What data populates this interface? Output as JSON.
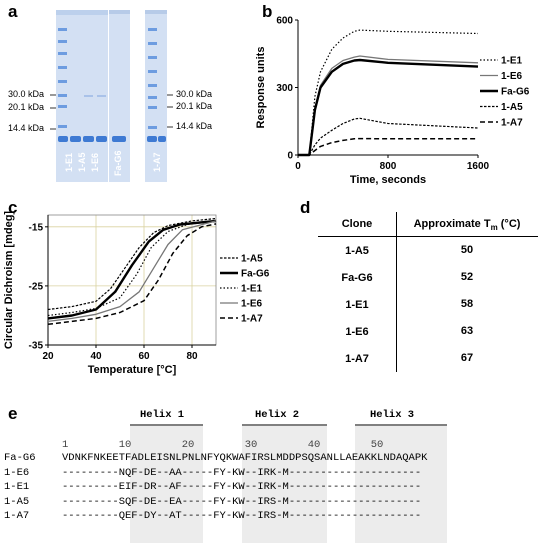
{
  "panels": {
    "a": "a",
    "b": "b",
    "c": "c",
    "d": "d",
    "e": "e"
  },
  "gel": {
    "markers_left": [
      "30.0 kDa",
      "20.1 kDa",
      "14.4 kDa"
    ],
    "markers_right": [
      "30.0 kDa",
      "20.1 kDa",
      "14.4 kDa"
    ],
    "lanes_left": [
      "1-E1",
      "1-A5",
      "1-E6"
    ],
    "lane_middle": "Fa-G6",
    "lane_right": "1-A7",
    "colors": {
      "gel": "#c9daf2",
      "ladder": "#5b8fd9",
      "band": "#3e7ad3"
    }
  },
  "chart_data": [
    {
      "panel": "b",
      "type": "line",
      "xlabel": "Time, seconds",
      "ylabel": "Response units",
      "xlim": [
        0,
        1600
      ],
      "ylim": [
        0,
        600
      ],
      "xticks": [
        0,
        800,
        1600
      ],
      "yticks": [
        0,
        300,
        600
      ],
      "legend_position": "right",
      "series": [
        {
          "name": "1-E1",
          "style": "dotted",
          "points": [
            [
              0,
              0
            ],
            [
              100,
              0
            ],
            [
              150,
              260
            ],
            [
              200,
              370
            ],
            [
              300,
              470
            ],
            [
              400,
              520
            ],
            [
              500,
              550
            ],
            [
              550,
              555
            ],
            [
              800,
              550
            ],
            [
              1600,
              540
            ]
          ]
        },
        {
          "name": "1-E6",
          "style": "thin",
          "points": [
            [
              0,
              0
            ],
            [
              100,
              0
            ],
            [
              150,
              210
            ],
            [
              200,
              310
            ],
            [
              300,
              385
            ],
            [
              400,
              420
            ],
            [
              500,
              435
            ],
            [
              550,
              440
            ],
            [
              800,
              425
            ],
            [
              1600,
              410
            ]
          ]
        },
        {
          "name": "Fa-G6",
          "style": "bold",
          "points": [
            [
              0,
              0
            ],
            [
              100,
              0
            ],
            [
              150,
              200
            ],
            [
              200,
              300
            ],
            [
              300,
              370
            ],
            [
              400,
              405
            ],
            [
              500,
              420
            ],
            [
              550,
              422
            ],
            [
              800,
              410
            ],
            [
              1600,
              393
            ]
          ]
        },
        {
          "name": "1-A5",
          "style": "short-dash",
          "points": [
            [
              0,
              0
            ],
            [
              100,
              0
            ],
            [
              150,
              45
            ],
            [
              200,
              75
            ],
            [
              300,
              110
            ],
            [
              400,
              140
            ],
            [
              500,
              160
            ],
            [
              550,
              163
            ],
            [
              800,
              140
            ],
            [
              1600,
              120
            ]
          ]
        },
        {
          "name": "1-A7",
          "style": "dashed",
          "points": [
            [
              0,
              0
            ],
            [
              100,
              0
            ],
            [
              150,
              20
            ],
            [
              200,
              38
            ],
            [
              300,
              55
            ],
            [
              400,
              65
            ],
            [
              500,
              72
            ],
            [
              550,
              73
            ],
            [
              800,
              72
            ],
            [
              1600,
              72
            ]
          ]
        }
      ]
    },
    {
      "panel": "c",
      "type": "line",
      "xlabel": "Temperature [°C]",
      "ylabel": "Circular Dichroism [mdeg]",
      "xlim": [
        20,
        90
      ],
      "ylim": [
        -35,
        -13
      ],
      "xticks": [
        20,
        40,
        60,
        80
      ],
      "yticks": [
        -15,
        -25,
        -35
      ],
      "grid": true,
      "legend_position": "right",
      "series": [
        {
          "name": "1-A5",
          "style": "short-dash",
          "points": [
            [
              20,
              -29
            ],
            [
              30,
              -28.5
            ],
            [
              40,
              -27.6
            ],
            [
              46,
              -25.5
            ],
            [
              52,
              -22
            ],
            [
              58,
              -18.5
            ],
            [
              64,
              -16
            ],
            [
              70,
              -14.8
            ],
            [
              80,
              -14
            ],
            [
              90,
              -13.6
            ]
          ]
        },
        {
          "name": "Fa-G6",
          "style": "bold",
          "points": [
            [
              20,
              -30.5
            ],
            [
              30,
              -30
            ],
            [
              40,
              -29
            ],
            [
              48,
              -26
            ],
            [
              55,
              -21.5
            ],
            [
              62,
              -17.5
            ],
            [
              68,
              -15.5
            ],
            [
              75,
              -14.6
            ],
            [
              90,
              -14
            ]
          ]
        },
        {
          "name": "1-E1",
          "style": "dotted",
          "points": [
            [
              20,
              -30
            ],
            [
              30,
              -29.5
            ],
            [
              40,
              -28.8
            ],
            [
              50,
              -27
            ],
            [
              57,
              -23
            ],
            [
              63,
              -18.5
            ],
            [
              70,
              -15.8
            ],
            [
              78,
              -14.6
            ],
            [
              90,
              -14
            ]
          ]
        },
        {
          "name": "1-E6",
          "style": "thin",
          "points": [
            [
              20,
              -31
            ],
            [
              30,
              -30.5
            ],
            [
              40,
              -29.8
            ],
            [
              50,
              -28.5
            ],
            [
              58,
              -26
            ],
            [
              64,
              -22
            ],
            [
              70,
              -18
            ],
            [
              76,
              -15.5
            ],
            [
              90,
              -14
            ]
          ]
        },
        {
          "name": "1-A7",
          "style": "dashed",
          "points": [
            [
              20,
              -31.5
            ],
            [
              30,
              -31
            ],
            [
              40,
              -30.5
            ],
            [
              50,
              -29.5
            ],
            [
              60,
              -27.5
            ],
            [
              66,
              -24
            ],
            [
              72,
              -19.5
            ],
            [
              78,
              -16.5
            ],
            [
              84,
              -15
            ],
            [
              90,
              -14.5
            ]
          ]
        }
      ]
    }
  ],
  "table": {
    "header_clone": "Clone",
    "header_tm_prefix": "Approximate T",
    "header_tm_sub": "m",
    "header_tm_suffix": " (°C)",
    "rows": [
      {
        "clone": "1-A5",
        "tm": "50"
      },
      {
        "clone": "Fa-G6",
        "tm": "52"
      },
      {
        "clone": "1-E1",
        "tm": "58"
      },
      {
        "clone": "1-E6",
        "tm": "63"
      },
      {
        "clone": "1-A7",
        "tm": "67"
      }
    ]
  },
  "alignment": {
    "helices": [
      "Helix 1",
      "Helix 2",
      "Helix 3"
    ],
    "ruler": "1        10        20        30        40        50",
    "rows": [
      {
        "name": "Fa-G6",
        "seq": "VDNKFNKEETFADLEISNLPNLNFYQKWAFIRSLMDDPSQSANLLAEAKKLNDAQAPK"
      },
      {
        "name": "1-E6",
        "seq": "---------NQF-DE--AA-----FY-KW--IRK-M---------------------"
      },
      {
        "name": "1-E1",
        "seq": "---------EIF-DR--AF-----FY-KW--IRK-M---------------------"
      },
      {
        "name": "1-A5",
        "seq": "---------SQF-DE--EA-----FY-KW--IRS-M---------------------"
      },
      {
        "name": "1-A7",
        "seq": "---------QEF-DY--AT-----FY-KW--IRS-M---------------------"
      }
    ]
  }
}
